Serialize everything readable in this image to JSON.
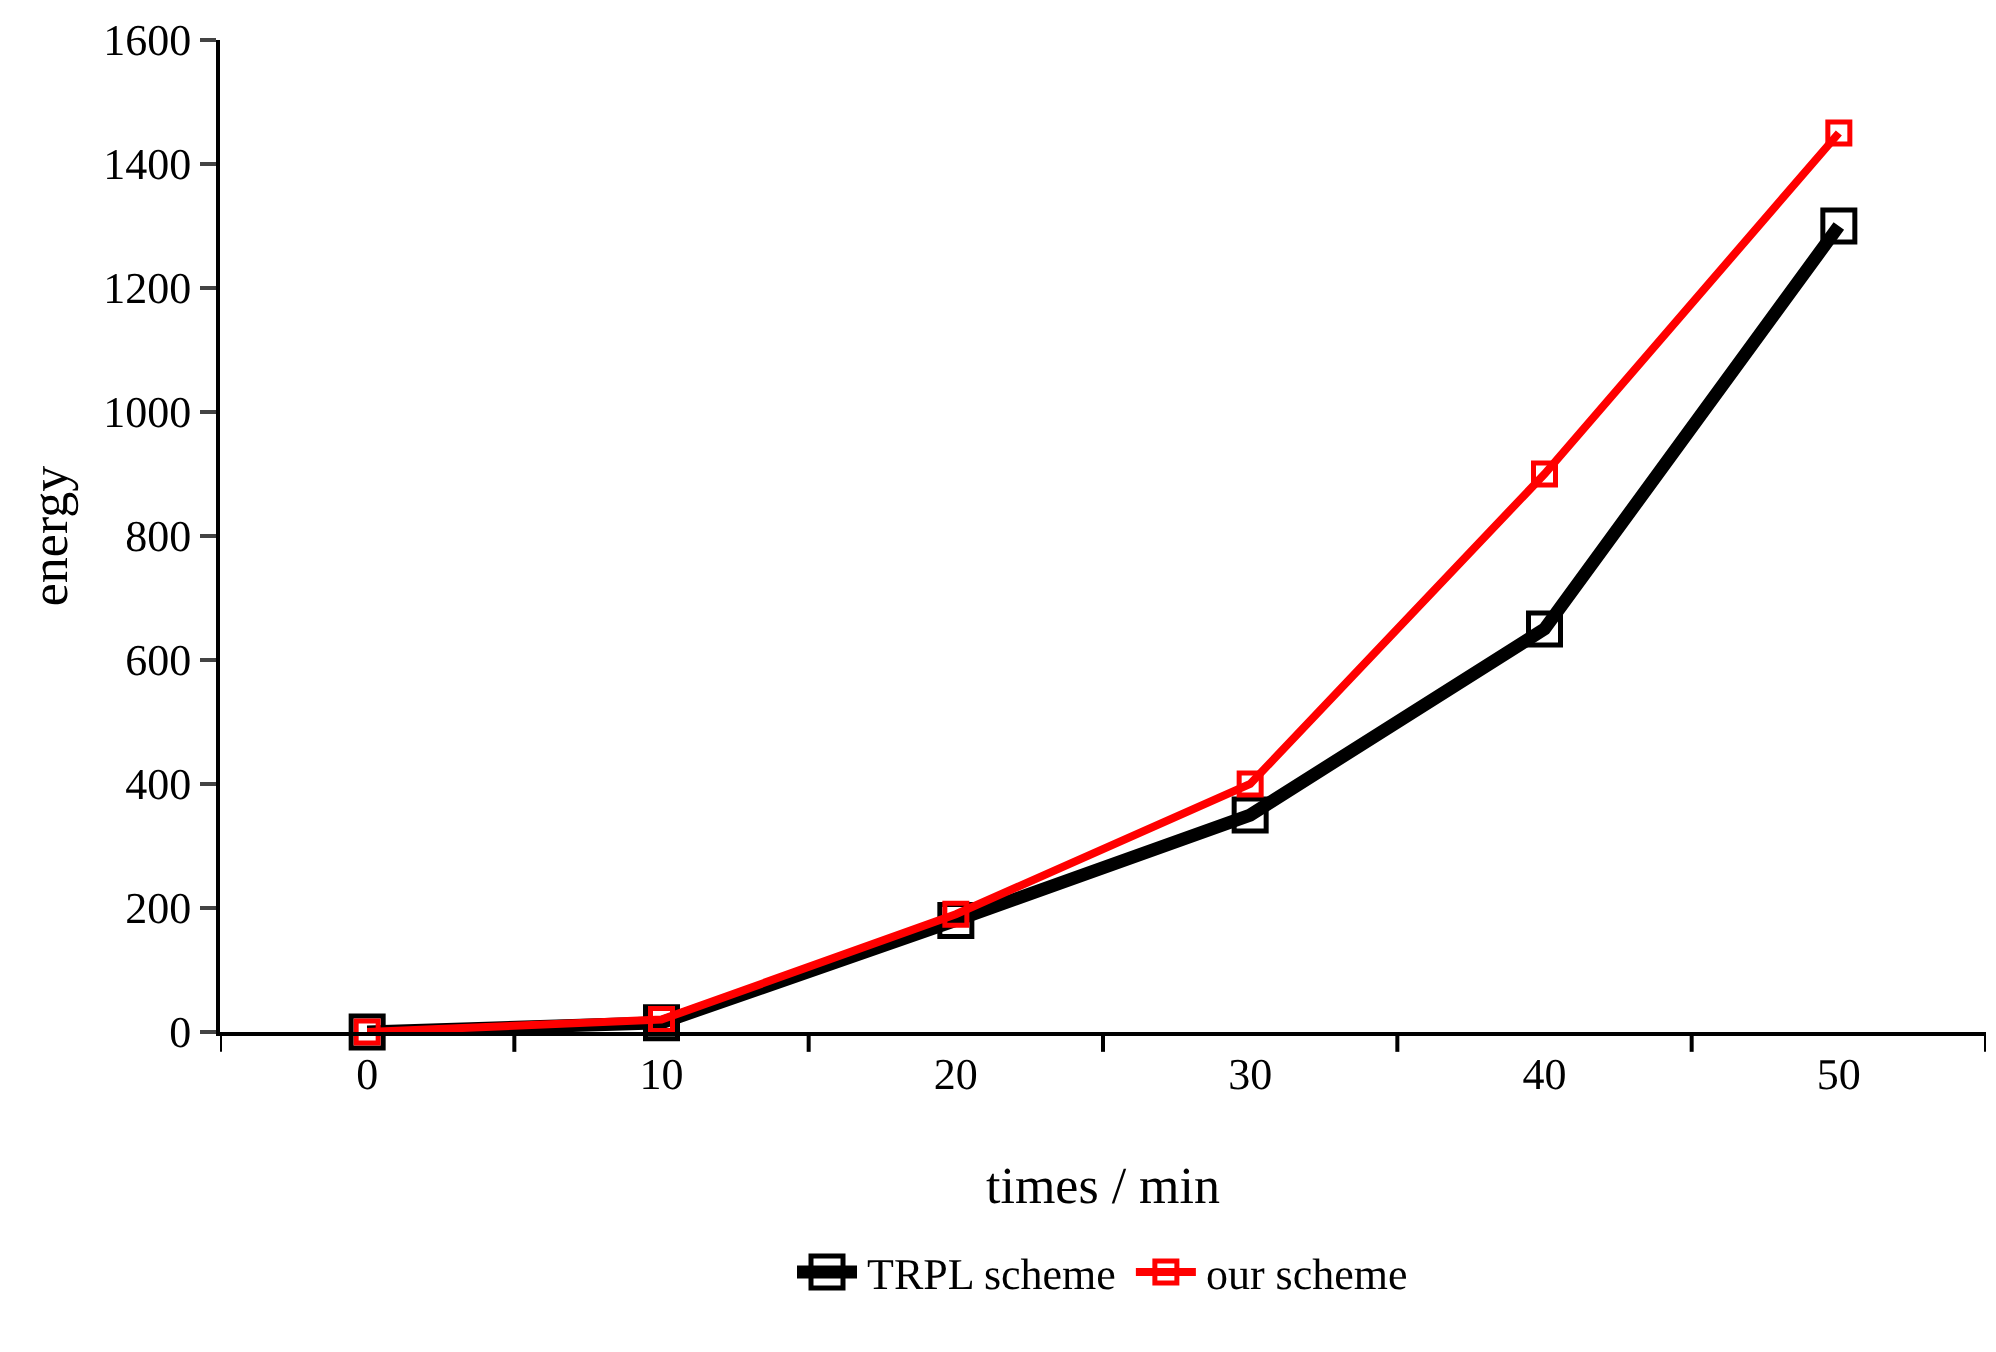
{
  "chart_data": {
    "type": "line",
    "xlabel": "times / min",
    "ylabel": "energy",
    "categories": [
      "0",
      "10",
      "20",
      "30",
      "40",
      "50"
    ],
    "series": [
      {
        "name": "TRPL scheme",
        "color": "#000000",
        "values": [
          0,
          15,
          180,
          350,
          650,
          1300
        ]
      },
      {
        "name": "our scheme",
        "color": "#ff0000",
        "values": [
          0,
          20,
          190,
          400,
          900,
          1450
        ]
      }
    ],
    "ylim": [
      0,
      1600
    ],
    "yticks": [
      0,
      200,
      400,
      600,
      800,
      1000,
      1200,
      1400,
      1600
    ],
    "legend": "bottom",
    "marker": "square",
    "line_style": "solid"
  }
}
